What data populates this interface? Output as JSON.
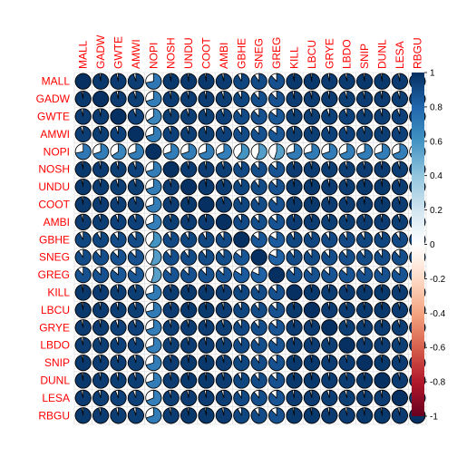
{
  "chart_data": {
    "type": "heatmap",
    "style": "pie-matrix correlogram",
    "title": "",
    "variables": [
      "MALL",
      "GADW",
      "GWTE",
      "AMWI",
      "NOPI",
      "NOSH",
      "UNDU",
      "COOT",
      "AMBI",
      "GBHE",
      "SNEG",
      "GREG",
      "KILL",
      "LBCU",
      "GRYE",
      "LBDO",
      "SNIP",
      "DUNL",
      "LESA",
      "RBGU"
    ],
    "matrix": [
      [
        1.0,
        0.97,
        0.96,
        0.95,
        0.72,
        0.97,
        0.97,
        0.97,
        0.96,
        0.92,
        0.9,
        0.88,
        0.97,
        0.97,
        0.96,
        0.96,
        0.97,
        0.97,
        0.96,
        0.97
      ],
      [
        0.97,
        1.0,
        0.96,
        0.95,
        0.7,
        0.96,
        0.96,
        0.96,
        0.95,
        0.92,
        0.89,
        0.88,
        0.96,
        0.96,
        0.96,
        0.95,
        0.96,
        0.96,
        0.95,
        0.96
      ],
      [
        0.96,
        0.96,
        1.0,
        0.94,
        0.66,
        0.95,
        0.95,
        0.95,
        0.94,
        0.9,
        0.88,
        0.86,
        0.95,
        0.95,
        0.94,
        0.94,
        0.95,
        0.95,
        0.94,
        0.95
      ],
      [
        0.95,
        0.95,
        0.94,
        1.0,
        0.7,
        0.94,
        0.95,
        0.95,
        0.94,
        0.9,
        0.88,
        0.86,
        0.95,
        0.95,
        0.94,
        0.94,
        0.95,
        0.95,
        0.94,
        0.95
      ],
      [
        0.72,
        0.7,
        0.66,
        0.7,
        1.0,
        0.7,
        0.7,
        0.7,
        0.69,
        0.6,
        0.56,
        0.55,
        0.71,
        0.71,
        0.7,
        0.69,
        0.7,
        0.7,
        0.69,
        0.7
      ],
      [
        0.97,
        0.96,
        0.95,
        0.94,
        0.7,
        1.0,
        0.96,
        0.96,
        0.95,
        0.91,
        0.89,
        0.87,
        0.96,
        0.96,
        0.95,
        0.95,
        0.96,
        0.96,
        0.95,
        0.96
      ],
      [
        0.97,
        0.96,
        0.95,
        0.95,
        0.7,
        0.96,
        1.0,
        0.97,
        0.96,
        0.92,
        0.9,
        0.88,
        0.97,
        0.97,
        0.96,
        0.96,
        0.97,
        0.97,
        0.96,
        0.97
      ],
      [
        0.97,
        0.96,
        0.95,
        0.95,
        0.7,
        0.96,
        0.97,
        1.0,
        0.96,
        0.92,
        0.9,
        0.88,
        0.97,
        0.97,
        0.96,
        0.96,
        0.97,
        0.97,
        0.96,
        0.97
      ],
      [
        0.96,
        0.95,
        0.94,
        0.94,
        0.69,
        0.95,
        0.96,
        0.96,
        1.0,
        0.91,
        0.89,
        0.87,
        0.96,
        0.96,
        0.95,
        0.95,
        0.96,
        0.96,
        0.95,
        0.96
      ],
      [
        0.92,
        0.92,
        0.9,
        0.9,
        0.6,
        0.91,
        0.92,
        0.92,
        0.91,
        1.0,
        0.86,
        0.84,
        0.92,
        0.92,
        0.91,
        0.91,
        0.92,
        0.92,
        0.91,
        0.92
      ],
      [
        0.9,
        0.89,
        0.88,
        0.88,
        0.56,
        0.89,
        0.9,
        0.9,
        0.89,
        0.86,
        1.0,
        0.82,
        0.9,
        0.9,
        0.89,
        0.89,
        0.9,
        0.9,
        0.89,
        0.9
      ],
      [
        0.88,
        0.88,
        0.86,
        0.86,
        0.55,
        0.87,
        0.88,
        0.88,
        0.87,
        0.84,
        0.82,
        1.0,
        0.88,
        0.88,
        0.87,
        0.87,
        0.88,
        0.88,
        0.87,
        0.88
      ],
      [
        0.97,
        0.96,
        0.95,
        0.95,
        0.71,
        0.96,
        0.97,
        0.97,
        0.96,
        0.92,
        0.9,
        0.88,
        1.0,
        0.97,
        0.96,
        0.96,
        0.97,
        0.97,
        0.96,
        0.97
      ],
      [
        0.97,
        0.96,
        0.95,
        0.95,
        0.71,
        0.96,
        0.97,
        0.97,
        0.96,
        0.92,
        0.9,
        0.88,
        0.97,
        1.0,
        0.96,
        0.96,
        0.97,
        0.97,
        0.96,
        0.97
      ],
      [
        0.96,
        0.96,
        0.94,
        0.94,
        0.7,
        0.95,
        0.96,
        0.96,
        0.95,
        0.91,
        0.89,
        0.87,
        0.96,
        0.96,
        1.0,
        0.95,
        0.96,
        0.96,
        0.95,
        0.96
      ],
      [
        0.96,
        0.95,
        0.94,
        0.94,
        0.69,
        0.95,
        0.96,
        0.96,
        0.95,
        0.91,
        0.89,
        0.87,
        0.96,
        0.96,
        0.95,
        1.0,
        0.96,
        0.96,
        0.95,
        0.96
      ],
      [
        0.97,
        0.96,
        0.95,
        0.95,
        0.7,
        0.96,
        0.97,
        0.97,
        0.96,
        0.92,
        0.9,
        0.88,
        0.97,
        0.97,
        0.96,
        0.96,
        1.0,
        0.97,
        0.96,
        0.97
      ],
      [
        0.97,
        0.96,
        0.95,
        0.95,
        0.7,
        0.96,
        0.97,
        0.97,
        0.96,
        0.92,
        0.9,
        0.88,
        0.97,
        0.97,
        0.96,
        0.96,
        0.97,
        1.0,
        0.96,
        0.97
      ],
      [
        0.96,
        0.95,
        0.94,
        0.94,
        0.69,
        0.95,
        0.96,
        0.96,
        0.95,
        0.91,
        0.89,
        0.87,
        0.96,
        0.96,
        0.95,
        0.95,
        0.96,
        0.96,
        1.0,
        0.96
      ],
      [
        0.97,
        0.96,
        0.95,
        0.95,
        0.7,
        0.96,
        0.97,
        0.97,
        0.96,
        0.92,
        0.9,
        0.88,
        0.97,
        0.97,
        0.96,
        0.96,
        0.97,
        0.97,
        0.96,
        1.0
      ]
    ],
    "colorbar": {
      "ticks": [
        "1",
        "0.8",
        "0.6",
        "0.4",
        "0.2",
        "0",
        "-0.2",
        "-0.4",
        "-0.6",
        "-0.8",
        "-1"
      ],
      "range": [
        -1,
        1
      ],
      "colors": [
        "#67001F",
        "#B2182B",
        "#D6604D",
        "#F4A582",
        "#FDDBC7",
        "#FFFFFF",
        "#D1E5F0",
        "#92C5DE",
        "#4393C3",
        "#2166AC",
        "#053061"
      ]
    },
    "label_color": "#FF0000",
    "grid": true
  }
}
